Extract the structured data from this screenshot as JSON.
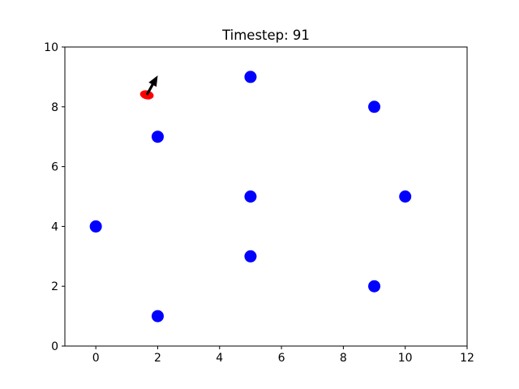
{
  "chart_data": {
    "type": "scatter",
    "title": "Timestep: 91",
    "xlabel": "",
    "ylabel": "",
    "xlim": [
      -1,
      12
    ],
    "ylim": [
      0,
      10
    ],
    "xticks": [
      0,
      2,
      4,
      6,
      8,
      10,
      12
    ],
    "yticks": [
      0,
      2,
      4,
      6,
      8,
      10
    ],
    "grid": false,
    "series": [
      {
        "marker": "circle",
        "color": "#0000ff",
        "points": [
          {
            "x": 0,
            "y": 4
          },
          {
            "x": 2,
            "y": 1
          },
          {
            "x": 2,
            "y": 7
          },
          {
            "x": 5,
            "y": 3
          },
          {
            "x": 5,
            "y": 5
          },
          {
            "x": 5,
            "y": 9
          },
          {
            "x": 9,
            "y": 2
          },
          {
            "x": 9,
            "y": 8
          },
          {
            "x": 10,
            "y": 5
          }
        ]
      },
      {
        "marker": "ellipse",
        "color": "#ff0000",
        "points": [
          {
            "x": 1.65,
            "y": 8.4
          }
        ]
      }
    ],
    "annotations": [
      {
        "type": "arrow",
        "color": "#000000",
        "from": {
          "x": 1.65,
          "y": 8.4
        },
        "to": {
          "x": 2.0,
          "y": 9.05
        }
      }
    ]
  }
}
